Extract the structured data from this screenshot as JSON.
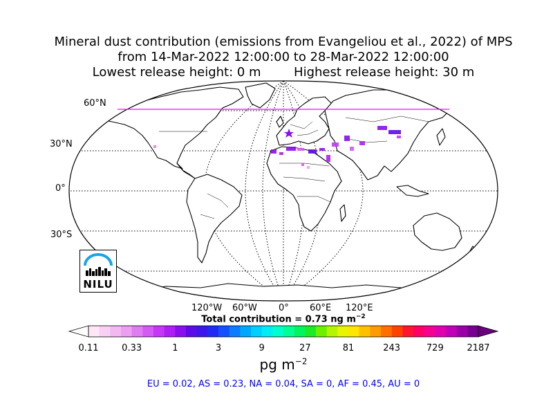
{
  "title": {
    "line1": "Mineral dust contribution (emissions from Evangeliou et al., 2022) of MPS",
    "line2": "from 14-Mar-2022 12:00:00 to 28-Mar-2022 12:00:00",
    "line3_left": "Lowest release height: 0 m",
    "line3_right": "Highest release height: 30 m"
  },
  "map": {
    "projection": "Robinson",
    "lat_labels": [
      "60°N",
      "30°N",
      "0°",
      "30°S"
    ],
    "lon_labels": [
      "120°W",
      "60°W",
      "0°",
      "60°E",
      "120°E"
    ],
    "land_color": "#ffffff",
    "coast_color": "#000000",
    "grid_style": "dotted",
    "release_marker_color": "#ff00ff"
  },
  "total_contribution": "Total contribution = 0.73 ng m",
  "total_exponent": "−2",
  "colorbar": {
    "tick_labels": [
      "0.11",
      "0.33",
      "1",
      "3",
      "9",
      "27",
      "81",
      "243",
      "729",
      "2187"
    ],
    "colors": [
      "#fde7f7",
      "#f8d0f3",
      "#f2b8f0",
      "#eb9ff0",
      "#e07cf2",
      "#d35af5",
      "#c437f7",
      "#b01ef6",
      "#8a0fee",
      "#5c0ce6",
      "#3a17ea",
      "#1f2bf5",
      "#1450ff",
      "#0a7cff",
      "#00a8ff",
      "#00cfff",
      "#00eef2",
      "#00ffcf",
      "#00ff95",
      "#00f55e",
      "#1aeb24",
      "#6cf000",
      "#b6f500",
      "#e8f500",
      "#ffe500",
      "#ffc000",
      "#ff9a00",
      "#ff7000",
      "#ff4200",
      "#ff1530",
      "#ff0065",
      "#f5008f",
      "#e000b0",
      "#c000b8",
      "#9a00a8",
      "#760090"
    ],
    "under_color": "#ffffff",
    "over_color": "#6a0080",
    "units": "pg m",
    "units_exponent": "−2"
  },
  "regions_text": "EU = 0.02,  AS = 0.23,  NA = 0.04,  SA = 0,  AF = 0.45,  AU = 0",
  "logo": {
    "text": "NILU",
    "accent_color": "#1aa3e8"
  }
}
